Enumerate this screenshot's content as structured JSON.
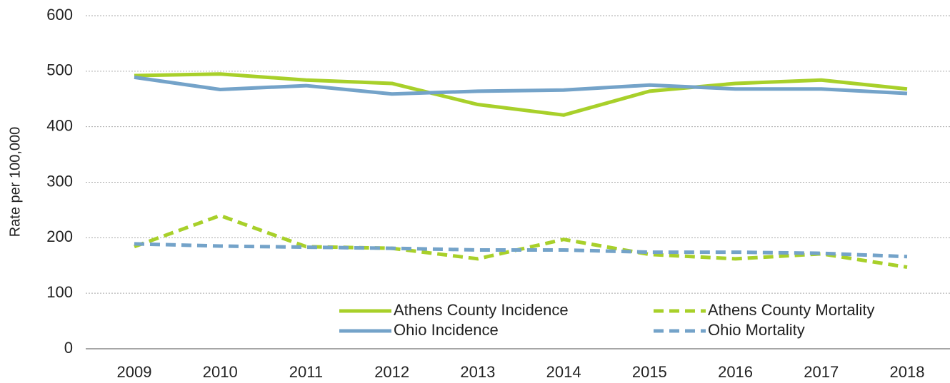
{
  "chart_data": {
    "type": "line",
    "y_label": "Rate per 100,000",
    "categories": [
      "2009",
      "2010",
      "2011",
      "2012",
      "2013",
      "2014",
      "2015",
      "2016",
      "2017",
      "2018"
    ],
    "series": [
      {
        "name": "Athens County Incidence",
        "color": "#a8d02a",
        "dashed": false,
        "values": [
          492,
          495,
          484,
          478,
          440,
          421,
          464,
          478,
          484,
          468
        ]
      },
      {
        "name": "Athens County Mortality",
        "color": "#a8d02a",
        "dashed": true,
        "values": [
          184,
          240,
          184,
          181,
          162,
          197,
          170,
          162,
          171,
          147
        ]
      },
      {
        "name": "Ohio Incidence",
        "color": "#74a3c9",
        "dashed": false,
        "values": [
          489,
          467,
          474,
          459,
          464,
          466,
          475,
          468,
          468,
          460
        ]
      },
      {
        "name": "Ohio Mortality",
        "color": "#74a3c9",
        "dashed": true,
        "values": [
          189,
          185,
          183,
          181,
          178,
          178,
          174,
          174,
          172,
          166
        ]
      }
    ],
    "ylim": [
      0,
      600
    ],
    "yticks": [
      0,
      100,
      200,
      300,
      400,
      500,
      600
    ],
    "grid": true,
    "legend": "lower right"
  }
}
